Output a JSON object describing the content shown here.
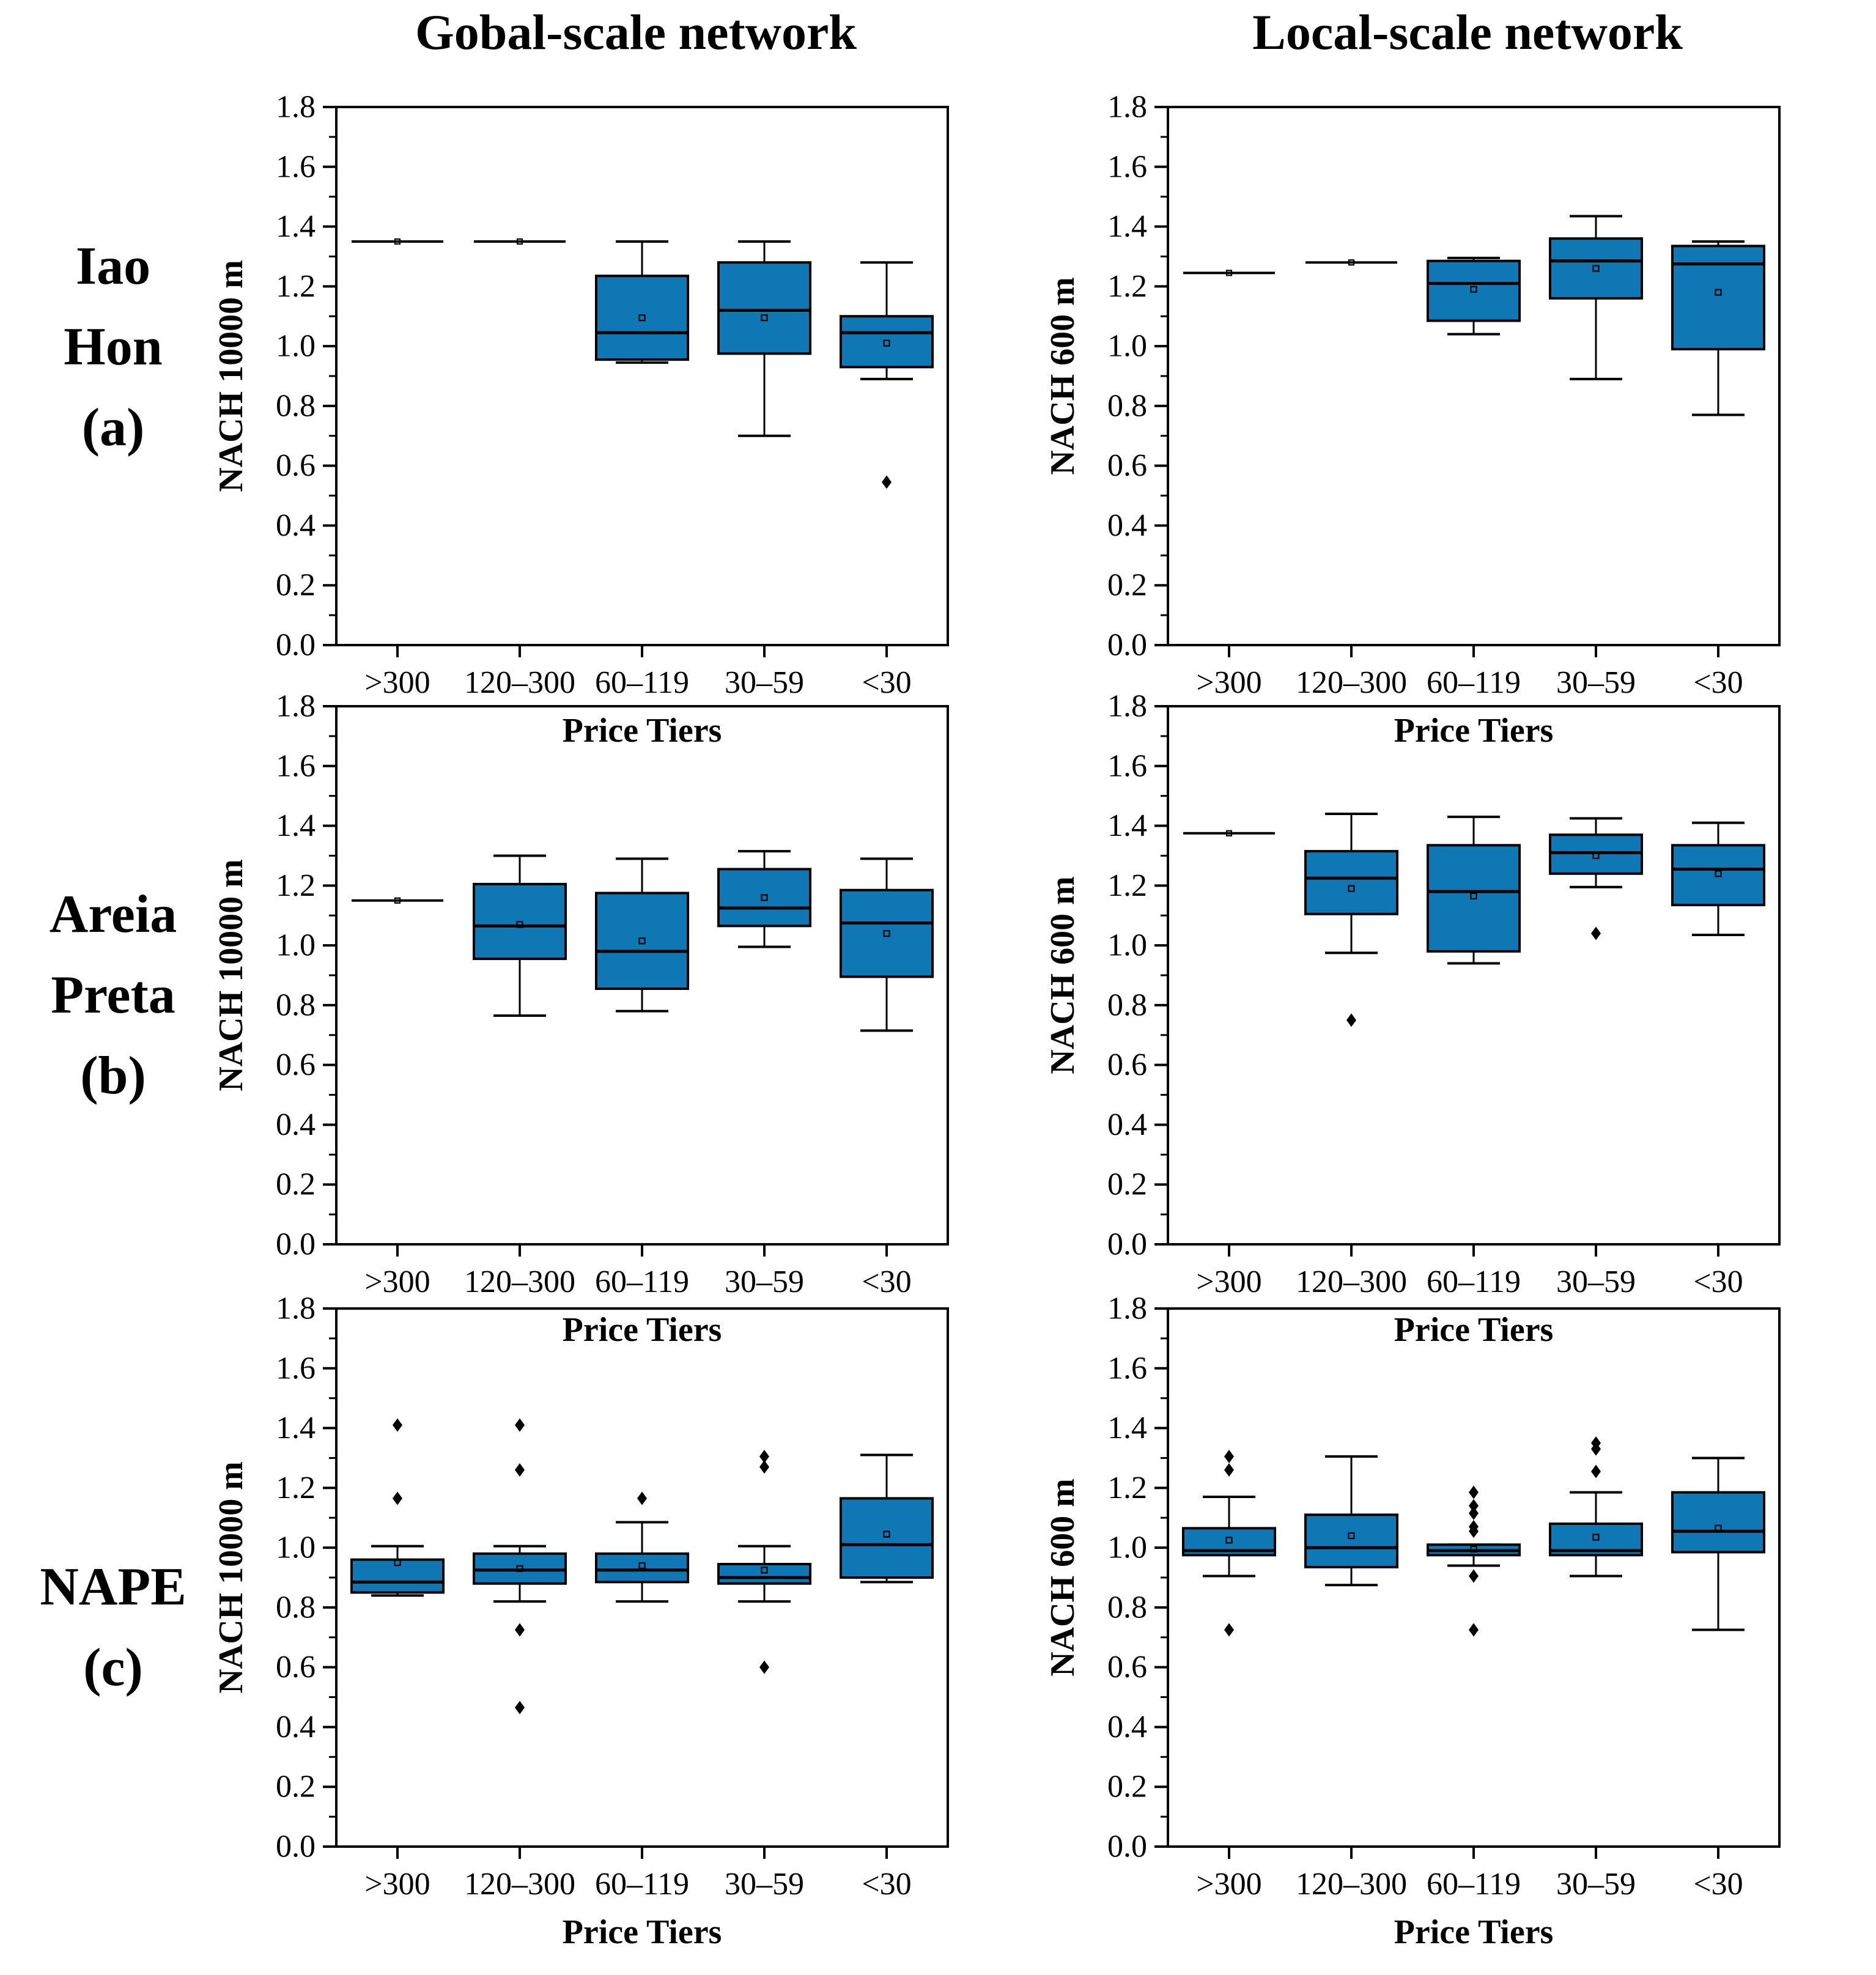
{
  "page": {
    "column_titles": [
      "Gobal-scale network",
      "Local-scale network"
    ]
  },
  "rows": [
    {
      "label_lines": [
        "Iao",
        "Hon",
        "(a)"
      ]
    },
    {
      "label_lines": [
        "Areia",
        "Preta",
        "(b)"
      ]
    },
    {
      "label_lines": [
        "NAPE",
        "(c)"
      ]
    }
  ],
  "colors": {
    "box_fill": "#0f77b3",
    "stroke": "#000000",
    "background": "#ffffff"
  },
  "chart_data": [
    {
      "type": "box",
      "location": "Iao Hon (a)",
      "network": "Gobal-scale network",
      "title": "",
      "xlabel": "Price Tiers",
      "ylabel": "NACH 10000 m",
      "ylim": [
        0.0,
        1.8
      ],
      "ytick_step": 0.2,
      "yminor_step": 0.1,
      "grid": false,
      "categories": [
        ">300",
        "120–300",
        "60–119",
        "30–59",
        "<30"
      ],
      "boxes": [
        {
          "line": 1.35,
          "mean": 1.35
        },
        {
          "line": 1.35,
          "mean": 1.35
        },
        {
          "q1": 0.955,
          "median": 1.045,
          "q3": 1.235,
          "mean": 1.095,
          "whisker_low": 0.945,
          "whisker_high": 1.35,
          "outliers": []
        },
        {
          "q1": 0.975,
          "median": 1.12,
          "q3": 1.28,
          "mean": 1.095,
          "whisker_low": 0.7,
          "whisker_high": 1.35,
          "outliers": []
        },
        {
          "q1": 0.93,
          "median": 1.045,
          "q3": 1.1,
          "mean": 1.01,
          "whisker_low": 0.89,
          "whisker_high": 1.28,
          "outliers": [
            0.545
          ]
        }
      ]
    },
    {
      "type": "box",
      "location": "Iao Hon (a)",
      "network": "Local-scale network",
      "title": "",
      "xlabel": "Price Tiers",
      "ylabel": "NACH 600 m",
      "ylim": [
        0.0,
        1.8
      ],
      "ytick_step": 0.2,
      "yminor_step": 0.1,
      "grid": false,
      "categories": [
        ">300",
        "120–300",
        "60–119",
        "30–59",
        "<30"
      ],
      "boxes": [
        {
          "line": 1.245,
          "mean": 1.245
        },
        {
          "line": 1.28,
          "mean": 1.28
        },
        {
          "q1": 1.085,
          "median": 1.21,
          "q3": 1.285,
          "mean": 1.19,
          "whisker_low": 1.04,
          "whisker_high": 1.295,
          "outliers": []
        },
        {
          "q1": 1.16,
          "median": 1.285,
          "q3": 1.36,
          "mean": 1.26,
          "whisker_low": 0.89,
          "whisker_high": 1.435,
          "outliers": []
        },
        {
          "q1": 0.99,
          "median": 1.275,
          "q3": 1.335,
          "mean": 1.18,
          "whisker_low": 0.77,
          "whisker_high": 1.35,
          "outliers": []
        }
      ]
    },
    {
      "type": "box",
      "location": "Areia Preta (b)",
      "network": "Gobal-scale network",
      "title": "",
      "xlabel": "Price Tiers",
      "ylabel": "NACH 10000 m",
      "ylim": [
        0.0,
        1.8
      ],
      "ytick_step": 0.2,
      "yminor_step": 0.1,
      "grid": false,
      "categories": [
        ">300",
        "120–300",
        "60–119",
        "30–59",
        "<30"
      ],
      "boxes": [
        {
          "line": 1.15,
          "mean": 1.15
        },
        {
          "q1": 0.955,
          "median": 1.065,
          "q3": 1.205,
          "mean": 1.07,
          "whisker_low": 0.765,
          "whisker_high": 1.3,
          "outliers": []
        },
        {
          "q1": 0.855,
          "median": 0.98,
          "q3": 1.175,
          "mean": 1.015,
          "whisker_low": 0.78,
          "whisker_high": 1.29,
          "outliers": []
        },
        {
          "q1": 1.065,
          "median": 1.125,
          "q3": 1.255,
          "mean": 1.16,
          "whisker_low": 0.995,
          "whisker_high": 1.315,
          "outliers": []
        },
        {
          "q1": 0.895,
          "median": 1.075,
          "q3": 1.185,
          "mean": 1.04,
          "whisker_low": 0.715,
          "whisker_high": 1.29,
          "outliers": []
        }
      ]
    },
    {
      "type": "box",
      "location": "Areia Preta (b)",
      "network": "Local-scale network",
      "title": "",
      "xlabel": "Price Tiers",
      "ylabel": "NACH 600 m",
      "ylim": [
        0.0,
        1.8
      ],
      "ytick_step": 0.2,
      "yminor_step": 0.1,
      "grid": false,
      "categories": [
        ">300",
        "120–300",
        "60–119",
        "30–59",
        "<30"
      ],
      "boxes": [
        {
          "line": 1.375,
          "mean": 1.375
        },
        {
          "q1": 1.105,
          "median": 1.225,
          "q3": 1.315,
          "mean": 1.19,
          "whisker_low": 0.975,
          "whisker_high": 1.44,
          "outliers": [
            0.75
          ]
        },
        {
          "q1": 0.98,
          "median": 1.18,
          "q3": 1.335,
          "mean": 1.165,
          "whisker_low": 0.94,
          "whisker_high": 1.43,
          "outliers": []
        },
        {
          "q1": 1.24,
          "median": 1.31,
          "q3": 1.37,
          "mean": 1.3,
          "whisker_low": 1.195,
          "whisker_high": 1.425,
          "outliers": [
            1.04
          ]
        },
        {
          "q1": 1.135,
          "median": 1.255,
          "q3": 1.335,
          "mean": 1.24,
          "whisker_low": 1.035,
          "whisker_high": 1.41,
          "outliers": []
        }
      ]
    },
    {
      "type": "box",
      "location": "NAPE (c)",
      "network": "Gobal-scale network",
      "title": "",
      "xlabel": "Price Tiers",
      "ylabel": "NACH 10000 m",
      "ylim": [
        0.0,
        1.8
      ],
      "ytick_step": 0.2,
      "yminor_step": 0.1,
      "grid": false,
      "categories": [
        ">300",
        "120–300",
        "60–119",
        "30–59",
        "<30"
      ],
      "boxes": [
        {
          "q1": 0.85,
          "median": 0.885,
          "q3": 0.96,
          "mean": 0.95,
          "whisker_low": 0.84,
          "whisker_high": 1.005,
          "outliers": [
            1.41,
            1.165
          ]
        },
        {
          "q1": 0.88,
          "median": 0.925,
          "q3": 0.98,
          "mean": 0.93,
          "whisker_low": 0.82,
          "whisker_high": 1.005,
          "outliers": [
            1.41,
            1.26,
            0.725,
            0.465
          ]
        },
        {
          "q1": 0.885,
          "median": 0.925,
          "q3": 0.98,
          "mean": 0.94,
          "whisker_low": 0.82,
          "whisker_high": 1.085,
          "outliers": [
            1.165
          ]
        },
        {
          "q1": 0.88,
          "median": 0.9,
          "q3": 0.945,
          "mean": 0.925,
          "whisker_low": 0.82,
          "whisker_high": 1.005,
          "outliers": [
            1.305,
            1.27,
            0.6
          ]
        },
        {
          "q1": 0.9,
          "median": 1.01,
          "q3": 1.165,
          "mean": 1.045,
          "whisker_low": 0.885,
          "whisker_high": 1.31,
          "outliers": []
        }
      ]
    },
    {
      "type": "box",
      "location": "NAPE (c)",
      "network": "Local-scale network",
      "title": "",
      "xlabel": "Price Tiers",
      "ylabel": "NACH 600 m",
      "ylim": [
        0.0,
        1.8
      ],
      "ytick_step": 0.2,
      "yminor_step": 0.1,
      "grid": false,
      "categories": [
        ">300",
        "120–300",
        "60–119",
        "30–59",
        "<30"
      ],
      "boxes": [
        {
          "q1": 0.975,
          "median": 0.99,
          "q3": 1.065,
          "mean": 1.025,
          "whisker_low": 0.905,
          "whisker_high": 1.17,
          "outliers": [
            1.305,
            1.26,
            0.725
          ]
        },
        {
          "q1": 0.935,
          "median": 1.0,
          "q3": 1.11,
          "mean": 1.04,
          "whisker_low": 0.875,
          "whisker_high": 1.305,
          "outliers": []
        },
        {
          "q1": 0.975,
          "median": 0.99,
          "q3": 1.01,
          "mean": 0.995,
          "whisker_low": 0.94,
          "whisker_high": 1.01,
          "outliers": [
            1.185,
            1.14,
            1.115,
            1.07,
            1.055,
            0.905,
            0.725
          ]
        },
        {
          "q1": 0.975,
          "median": 0.99,
          "q3": 1.08,
          "mean": 1.035,
          "whisker_low": 0.905,
          "whisker_high": 1.185,
          "outliers": [
            1.35,
            1.33,
            1.255
          ]
        },
        {
          "q1": 0.985,
          "median": 1.055,
          "q3": 1.185,
          "mean": 1.065,
          "whisker_low": 0.725,
          "whisker_high": 1.3,
          "outliers": []
        }
      ]
    }
  ]
}
